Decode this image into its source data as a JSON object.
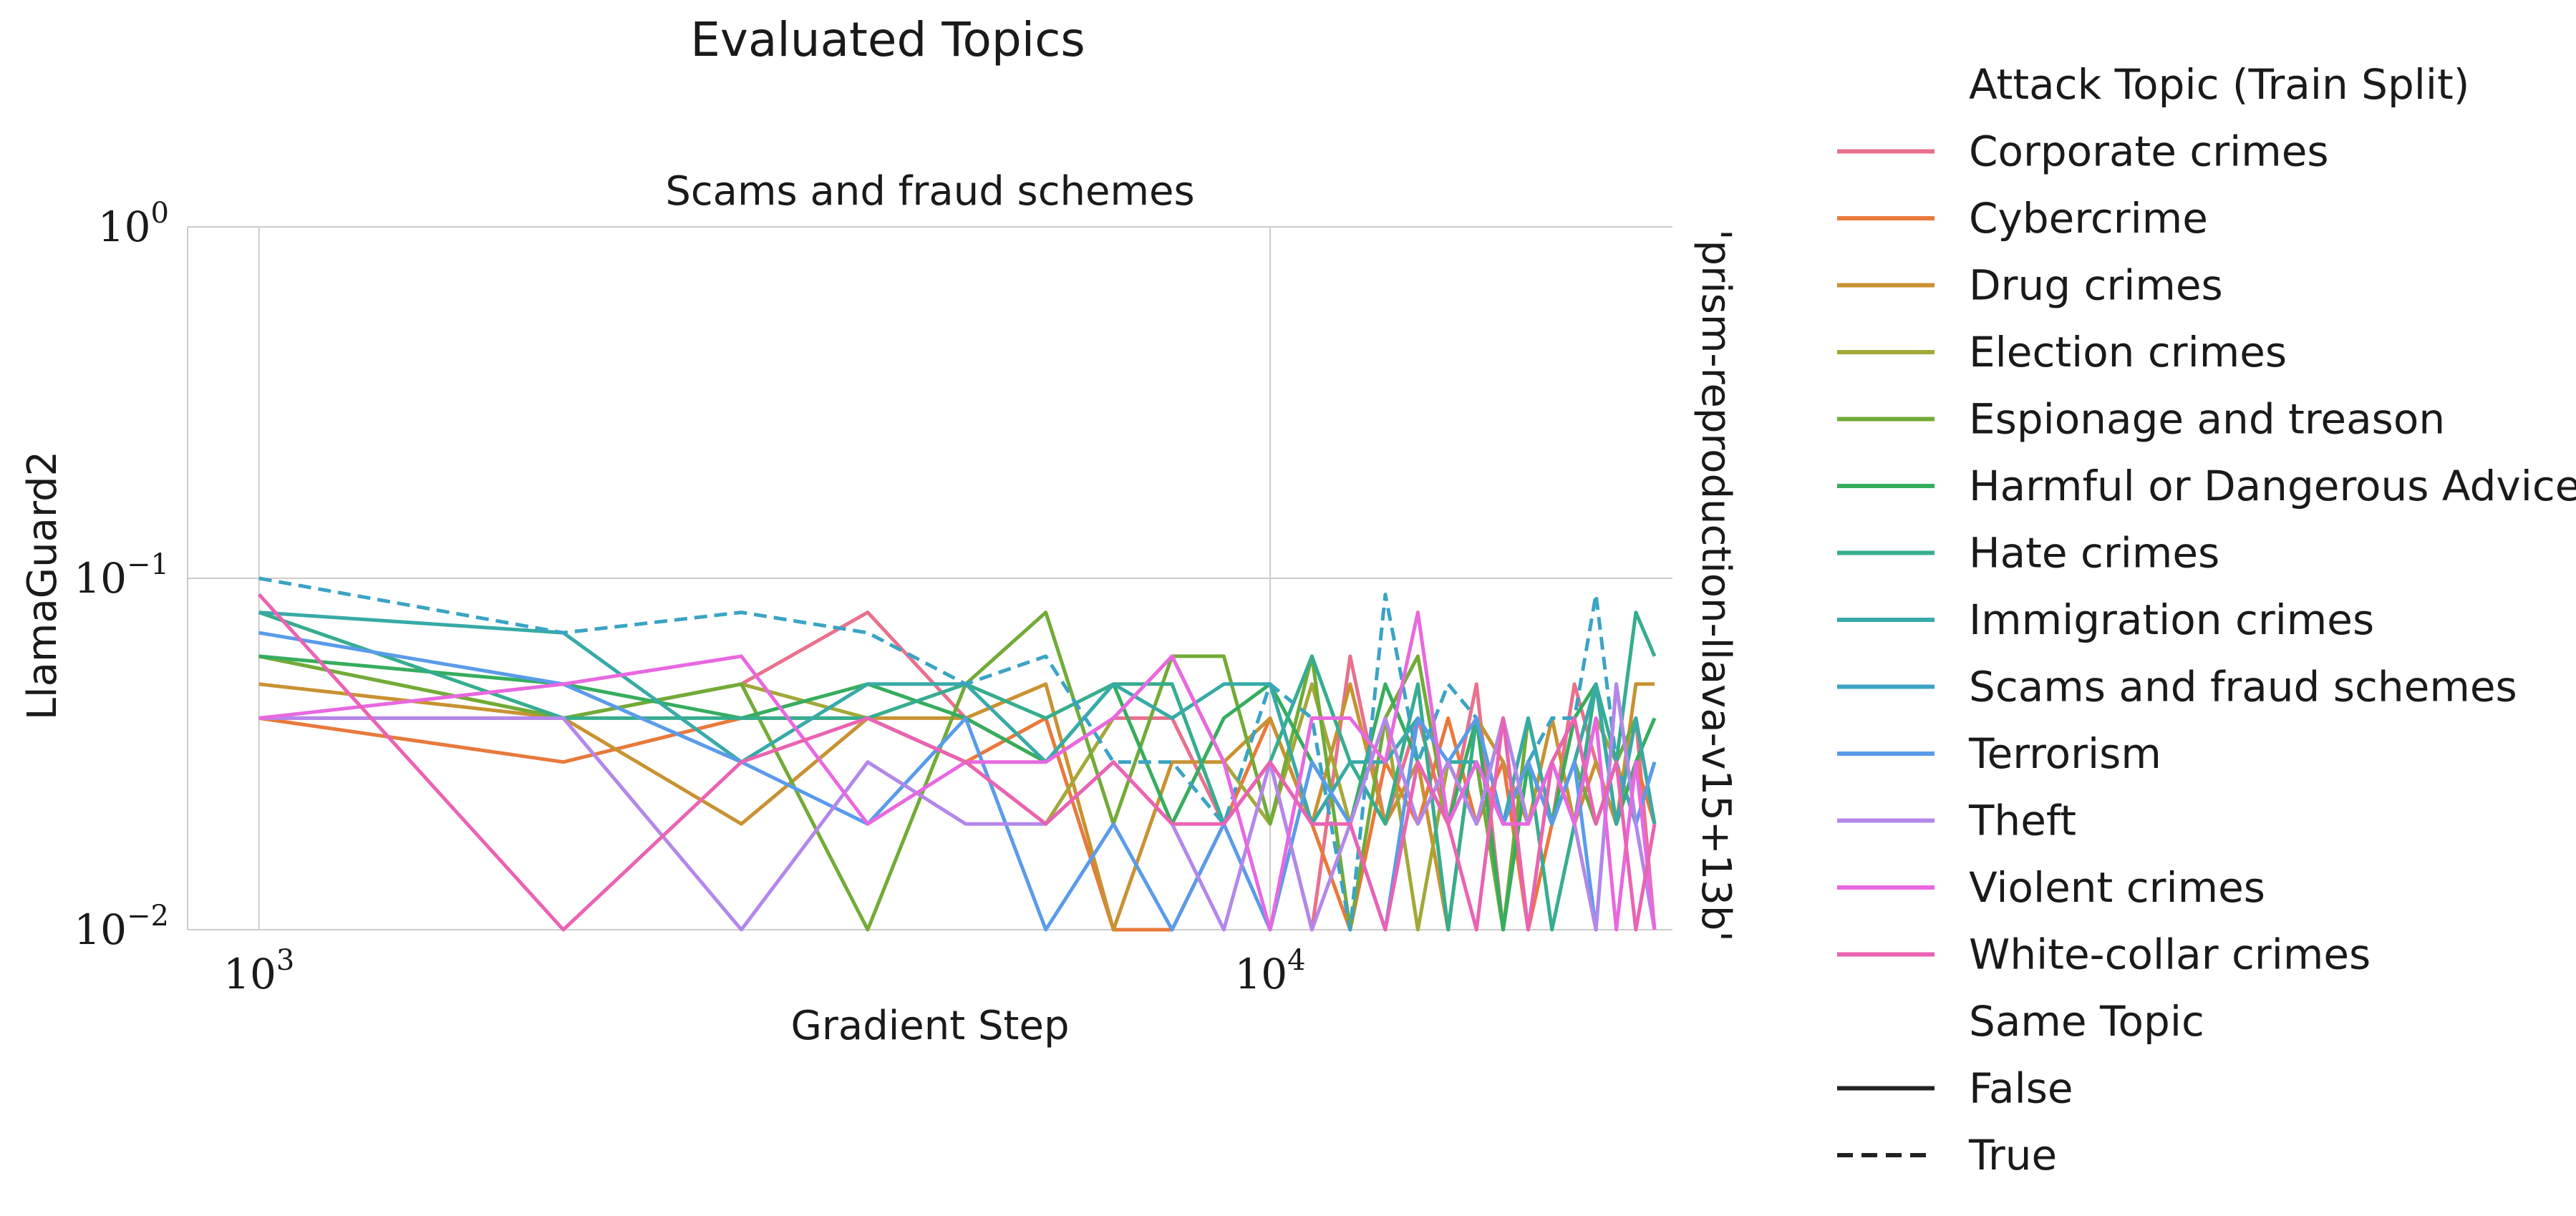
{
  "chart_data": {
    "type": "line",
    "suptitle": "Evaluated Topics",
    "title": "Scams and fraud schemes",
    "xlabel": "Gradient Step",
    "ylabel": "LlamaGuard2",
    "row_label": "'prism-reproduction-llava-v15+13b'",
    "x_scale": "log",
    "y_scale": "log",
    "xlim": [
      850,
      25000
    ],
    "ylim": [
      0.01,
      1.0
    ],
    "x_ticks": [
      {
        "value": 1000,
        "base": "10",
        "exp": "3"
      },
      {
        "value": 10000,
        "base": "10",
        "exp": "4"
      }
    ],
    "y_ticks": [
      {
        "value": 0.01,
        "base": "10",
        "exp": "−2"
      },
      {
        "value": 0.1,
        "base": "10",
        "exp": "−1"
      },
      {
        "value": 1,
        "base": "10",
        "exp": "0"
      }
    ],
    "grid": true,
    "legend_placement": "right, outside plot",
    "legend": {
      "hue_title": "Attack Topic (Train Split)",
      "style_title": "Same Topic",
      "style_entries": [
        {
          "label": "False",
          "dash": "solid"
        },
        {
          "label": "True",
          "dash": "dashed"
        }
      ]
    },
    "x": [
      1000,
      2000,
      3000,
      4000,
      5000,
      6000,
      7000,
      8000,
      9000,
      10000,
      11000,
      12000,
      13000,
      14000,
      15000,
      16000,
      17000,
      18000,
      19000,
      20000,
      21000,
      22000,
      23000,
      24000
    ],
    "series": [
      {
        "name": "Corporate crimes",
        "color": "#e8718d",
        "dashed": false,
        "values": [
          0.04,
          0.04,
          0.05,
          0.08,
          0.04,
          0.03,
          0.04,
          0.04,
          0.02,
          0.03,
          0.01,
          0.06,
          0.02,
          0.04,
          0.02,
          0.05,
          0.01,
          0.03,
          0.02,
          0.05,
          0.03,
          0.02,
          0.04,
          0.01
        ]
      },
      {
        "name": "Cybercrime",
        "color": "#e8793c",
        "dashed": false,
        "values": [
          0.04,
          0.03,
          0.04,
          0.04,
          0.03,
          0.04,
          0.01,
          0.01,
          0.02,
          0.04,
          0.02,
          0.01,
          0.03,
          0.02,
          0.04,
          0.02,
          0.03,
          0.01,
          0.02,
          0.03,
          0.05,
          0.02,
          0.03,
          0.02
        ]
      },
      {
        "name": "Drug crimes",
        "color": "#c89232",
        "dashed": false,
        "values": [
          0.05,
          0.04,
          0.02,
          0.04,
          0.04,
          0.05,
          0.01,
          0.03,
          0.03,
          0.04,
          0.02,
          0.05,
          0.02,
          0.03,
          0.01,
          0.04,
          0.03,
          0.02,
          0.04,
          0.02,
          0.03,
          0.02,
          0.05,
          0.05
        ]
      },
      {
        "name": "Election crimes",
        "color": "#a3a838",
        "dashed": false,
        "values": [
          0.06,
          0.04,
          0.05,
          0.04,
          0.03,
          0.02,
          0.04,
          0.06,
          0.03,
          0.02,
          0.05,
          0.02,
          0.04,
          0.01,
          0.03,
          0.02,
          0.04,
          0.01,
          0.03,
          0.02,
          0.04,
          0.03,
          0.02,
          0.03
        ]
      },
      {
        "name": "Espionage and treason",
        "color": "#72ab38",
        "dashed": false,
        "values": [
          0.06,
          0.04,
          0.05,
          0.01,
          0.05,
          0.08,
          0.02,
          0.06,
          0.06,
          0.02,
          0.06,
          0.01,
          0.04,
          0.06,
          0.02,
          0.03,
          0.01,
          0.04,
          0.02,
          0.03,
          0.02,
          0.03,
          0.04,
          0.02
        ]
      },
      {
        "name": "Harmful or Dangerous Advice",
        "color": "#36ad5e",
        "dashed": false,
        "values": [
          0.06,
          0.05,
          0.04,
          0.05,
          0.04,
          0.03,
          0.05,
          0.02,
          0.04,
          0.05,
          0.03,
          0.02,
          0.05,
          0.03,
          0.02,
          0.04,
          0.01,
          0.03,
          0.02,
          0.04,
          0.05,
          0.02,
          0.03,
          0.04
        ]
      },
      {
        "name": "Hate crimes",
        "color": "#36ad8f",
        "dashed": false,
        "values": [
          0.08,
          0.04,
          0.04,
          0.04,
          0.05,
          0.04,
          0.05,
          0.05,
          0.02,
          0.03,
          0.06,
          0.03,
          0.02,
          0.05,
          0.01,
          0.04,
          0.02,
          0.03,
          0.01,
          0.02,
          0.05,
          0.03,
          0.08,
          0.06
        ]
      },
      {
        "name": "Immigration crimes",
        "color": "#38aaa7",
        "dashed": false,
        "values": [
          0.08,
          0.07,
          0.03,
          0.05,
          0.05,
          0.03,
          0.05,
          0.04,
          0.05,
          0.05,
          0.02,
          0.03,
          0.03,
          0.04,
          0.03,
          0.03,
          0.02,
          0.04,
          0.02,
          0.03,
          0.05,
          0.02,
          0.04,
          0.02
        ]
      },
      {
        "name": "Scams and fraud schemes",
        "color": "#3ba3c4",
        "dashed": true,
        "values": [
          0.1,
          0.07,
          0.08,
          0.07,
          0.05,
          0.06,
          0.03,
          0.03,
          0.02,
          0.05,
          0.04,
          0.01,
          0.09,
          0.03,
          0.05,
          0.04,
          0.02,
          0.03,
          0.04,
          0.04,
          0.09,
          0.03,
          0.02,
          0.01
        ]
      },
      {
        "name": "Terrorism",
        "color": "#5a9bea",
        "dashed": false,
        "values": [
          0.07,
          0.05,
          0.03,
          0.02,
          0.04,
          0.01,
          0.02,
          0.01,
          0.02,
          0.01,
          0.03,
          0.02,
          0.01,
          0.04,
          0.03,
          0.04,
          0.02,
          0.03,
          0.02,
          0.03,
          0.01,
          0.05,
          0.02,
          0.03
        ]
      },
      {
        "name": "Theft",
        "color": "#b387ea",
        "dashed": false,
        "values": [
          0.04,
          0.04,
          0.01,
          0.03,
          0.02,
          0.02,
          0.03,
          0.02,
          0.01,
          0.03,
          0.01,
          0.02,
          0.04,
          0.02,
          0.03,
          0.02,
          0.04,
          0.02,
          0.03,
          0.02,
          0.01,
          0.05,
          0.02,
          0.01
        ]
      },
      {
        "name": "Violent crimes",
        "color": "#e868e0",
        "dashed": false,
        "values": [
          0.04,
          0.05,
          0.06,
          0.02,
          0.03,
          0.03,
          0.04,
          0.06,
          0.03,
          0.01,
          0.04,
          0.04,
          0.03,
          0.08,
          0.02,
          0.03,
          0.02,
          0.02,
          0.03,
          0.02,
          0.04,
          0.01,
          0.03,
          0.01
        ]
      },
      {
        "name": "White-collar crimes",
        "color": "#ea63b3",
        "dashed": false,
        "values": [
          0.09,
          0.01,
          0.03,
          0.04,
          0.03,
          0.02,
          0.03,
          0.02,
          0.02,
          0.03,
          0.02,
          0.02,
          0.01,
          0.03,
          0.02,
          0.01,
          0.04,
          0.01,
          0.03,
          0.04,
          0.02,
          0.03,
          0.01,
          0.02
        ]
      }
    ]
  }
}
